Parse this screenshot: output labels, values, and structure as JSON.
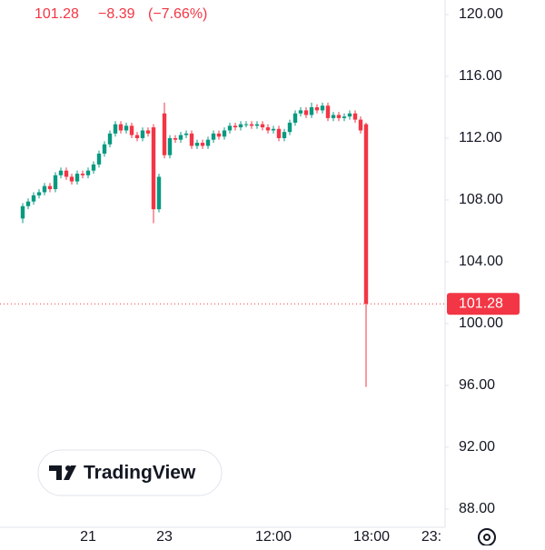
{
  "chart_data": {
    "type": "candlestick",
    "header": {
      "last": "101.28",
      "change": "−8.39",
      "change_pct": "(−7.66%)"
    },
    "watermark": "TradingView",
    "price_label": "101.28",
    "last_price": 101.28,
    "up_color": "#089981",
    "down_color": "#f23645",
    "categories": [
      null,
      null,
      null,
      null,
      null,
      null,
      null,
      null,
      null,
      null,
      null,
      null,
      "21",
      null,
      null,
      null,
      null,
      null,
      null,
      null,
      null,
      null,
      null,
      null,
      null,
      null,
      "23",
      null,
      null,
      null,
      null,
      null,
      null,
      null,
      null,
      null,
      null,
      null,
      null,
      null,
      null,
      null,
      null,
      null,
      null,
      null,
      "12:00",
      null,
      null,
      null,
      null,
      null,
      null,
      null,
      null,
      null,
      null,
      null,
      null,
      null,
      null,
      null,
      null,
      null,
      "18:00",
      null,
      null,
      null,
      null,
      null,
      null,
      null,
      null,
      null,
      null,
      "23:",
      null,
      null
    ],
    "open": [
      106.8,
      107.6,
      107.9,
      108.3,
      108.5,
      108.9,
      108.7,
      109.6,
      109.9,
      109.5,
      109.2,
      109.7,
      109.6,
      109.9,
      110.3,
      111.0,
      111.6,
      112.3,
      112.9,
      112.5,
      112.8,
      112.2,
      112.0,
      112.5,
      112.7,
      107.4,
      113.6,
      110.9,
      112.0,
      111.9,
      112.2,
      112.3,
      111.5,
      111.7,
      111.5,
      111.9,
      112.3,
      112.1,
      112.5,
      112.8,
      112.7,
      112.9,
      112.9,
      112.8,
      112.9,
      112.7,
      112.5,
      112.6,
      112.0,
      112.4,
      113.0,
      113.6,
      113.8,
      113.5,
      114.0,
      113.8,
      114.1,
      113.3,
      113.5,
      113.3,
      113.4,
      113.6,
      113.2,
      112.9,
      null,
      null,
      null,
      null,
      null,
      null,
      null,
      null,
      null,
      null,
      null,
      null,
      null,
      null
    ],
    "high": [
      107.8,
      108.1,
      108.5,
      108.7,
      109.1,
      109.1,
      109.8,
      110.1,
      110.1,
      109.7,
      109.9,
      109.9,
      110.1,
      110.5,
      111.2,
      111.8,
      112.5,
      113.1,
      113.1,
      113.0,
      113.0,
      112.4,
      112.7,
      112.7,
      112.9,
      109.7,
      114.3,
      112.2,
      112.2,
      112.4,
      112.5,
      112.5,
      111.9,
      111.9,
      112.1,
      112.5,
      112.5,
      112.7,
      113.0,
      113.0,
      113.1,
      113.1,
      113.1,
      113.1,
      113.1,
      112.9,
      112.8,
      112.8,
      112.6,
      113.2,
      113.8,
      114.0,
      114.0,
      114.3,
      114.2,
      114.3,
      114.3,
      113.7,
      113.7,
      113.6,
      113.8,
      113.8,
      113.4,
      113.0,
      null,
      null,
      null,
      null,
      null,
      null,
      null,
      null,
      null,
      null,
      null,
      null,
      null,
      null
    ],
    "low": [
      106.5,
      107.4,
      107.7,
      108.1,
      108.3,
      108.5,
      108.5,
      109.4,
      109.3,
      109.0,
      109.0,
      109.4,
      109.4,
      109.7,
      110.1,
      110.8,
      111.4,
      112.1,
      112.3,
      112.3,
      112.0,
      111.8,
      111.8,
      112.1,
      106.5,
      107.2,
      110.7,
      110.7,
      111.7,
      111.7,
      112.0,
      111.3,
      111.3,
      111.3,
      111.3,
      111.7,
      111.9,
      111.9,
      112.3,
      112.5,
      112.5,
      112.7,
      112.6,
      112.6,
      112.5,
      112.3,
      112.3,
      111.8,
      111.8,
      112.2,
      112.8,
      113.4,
      113.3,
      113.3,
      113.6,
      113.6,
      113.1,
      113.1,
      113.1,
      113.1,
      113.2,
      113.0,
      112.3,
      95.9,
      null,
      null,
      null,
      null,
      null,
      null,
      null,
      null,
      null,
      null,
      null,
      null,
      null,
      null
    ],
    "close": [
      107.6,
      107.9,
      108.3,
      108.5,
      108.9,
      108.7,
      109.6,
      109.9,
      109.5,
      109.2,
      109.7,
      109.6,
      109.9,
      110.3,
      111.0,
      111.6,
      112.3,
      112.9,
      112.5,
      112.8,
      112.2,
      112.0,
      112.5,
      112.3,
      107.4,
      109.5,
      110.9,
      112.0,
      111.9,
      112.2,
      112.3,
      111.5,
      111.7,
      111.5,
      111.9,
      112.3,
      112.1,
      112.5,
      112.8,
      112.7,
      112.9,
      112.9,
      112.8,
      112.9,
      112.7,
      112.5,
      112.6,
      112.0,
      112.4,
      113.0,
      113.6,
      113.8,
      113.5,
      114.0,
      113.8,
      114.1,
      113.3,
      113.5,
      113.3,
      113.4,
      113.6,
      113.2,
      112.5,
      101.28,
      null,
      null,
      null,
      null,
      null,
      null,
      null,
      null,
      null,
      null,
      null,
      null,
      null,
      null
    ],
    "ylim": [
      86.82,
      120.94
    ],
    "yticks": [
      {
        "value": 88,
        "label": "88.00"
      },
      {
        "value": 92,
        "label": "92.00"
      },
      {
        "value": 96,
        "label": "96.00"
      },
      {
        "value": 100,
        "label": "100.00"
      },
      {
        "value": 104,
        "label": "104.00"
      },
      {
        "value": 108,
        "label": "108.00"
      },
      {
        "value": 112,
        "label": "112.00"
      },
      {
        "value": 116,
        "label": "116.00"
      },
      {
        "value": 120,
        "label": "120.00"
      }
    ]
  }
}
